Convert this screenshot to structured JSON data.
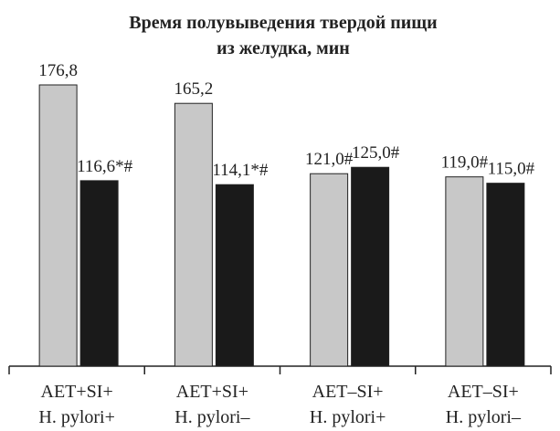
{
  "chart_data": {
    "type": "bar",
    "title": [
      "Время полувыведения твердой пищи",
      "из желудка, мин"
    ],
    "categories": [
      [
        "AET+SI+",
        "H. pylori+"
      ],
      [
        "AET+SI+",
        "H. pylori–"
      ],
      [
        "AET–SI+",
        "H. pylori+"
      ],
      [
        "AET–SI+",
        "H. pylori–"
      ]
    ],
    "series": [
      {
        "color": "#c8c8c8",
        "values": [
          176.8,
          165.2,
          121.0,
          119.0
        ],
        "labels": [
          "176,8",
          "165,2",
          "121,0#",
          "119,0#"
        ]
      },
      {
        "color": "#1a1a1a",
        "values": [
          116.6,
          114.1,
          125.0,
          115.0
        ],
        "labels": [
          "116,6*#",
          "114,1*#",
          "125,0#",
          "115,0#"
        ]
      }
    ],
    "ylim": [
      0,
      190
    ],
    "grid": false,
    "legend": false
  }
}
